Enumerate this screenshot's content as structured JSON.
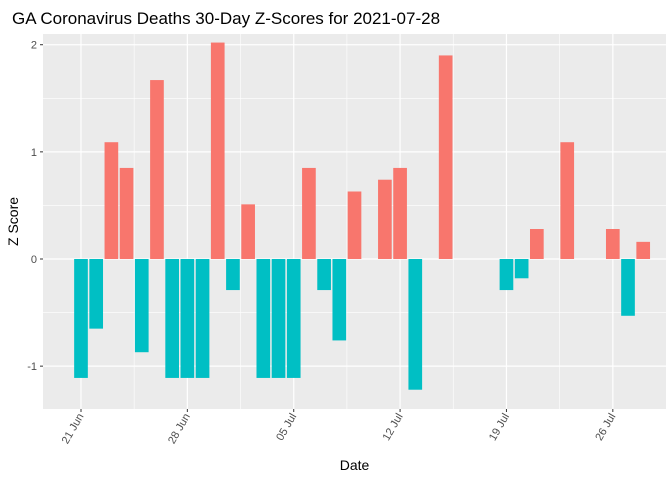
{
  "chart_data": {
    "type": "bar",
    "title": "GA Coronavirus Deaths 30-Day Z-Scores for 2021-07-28",
    "xlabel": "Date",
    "ylabel": "Z Score",
    "ylim": [
      -1.4,
      2.1
    ],
    "y_ticks": [
      -1,
      0,
      1,
      2
    ],
    "y_tick_labels": [
      "-1",
      "0",
      "1",
      "2"
    ],
    "x_ticks": [
      {
        "day": 0,
        "label": "21 Jun"
      },
      {
        "day": 7,
        "label": "28 Jun"
      },
      {
        "day": 14,
        "label": "05 Jul"
      },
      {
        "day": 21,
        "label": "12 Jul"
      },
      {
        "day": 28,
        "label": "19 Jul"
      },
      {
        "day": 35,
        "label": "26 Jul"
      }
    ],
    "x_range_days": [
      -2.5,
      38.5
    ],
    "colors": {
      "positive": "#F8766D",
      "negative": "#00BFC4"
    },
    "bars": [
      {
        "day": 0,
        "value": -1.11
      },
      {
        "day": 1,
        "value": -0.65
      },
      {
        "day": 2,
        "value": 1.09
      },
      {
        "day": 3,
        "value": 0.85
      },
      {
        "day": 4,
        "value": -0.87
      },
      {
        "day": 5,
        "value": 1.67
      },
      {
        "day": 6,
        "value": -1.11
      },
      {
        "day": 7,
        "value": -1.11
      },
      {
        "day": 8,
        "value": -1.11
      },
      {
        "day": 9,
        "value": 2.02
      },
      {
        "day": 10,
        "value": -0.29
      },
      {
        "day": 11,
        "value": 0.51
      },
      {
        "day": 12,
        "value": -1.11
      },
      {
        "day": 13,
        "value": -1.11
      },
      {
        "day": 14,
        "value": -1.11
      },
      {
        "day": 15,
        "value": 0.85
      },
      {
        "day": 16,
        "value": -0.29
      },
      {
        "day": 17,
        "value": -0.76
      },
      {
        "day": 18,
        "value": 0.63
      },
      {
        "day": 20,
        "value": 0.74
      },
      {
        "day": 21,
        "value": 0.85
      },
      {
        "day": 22,
        "value": -1.22
      },
      {
        "day": 24,
        "value": 1.9
      },
      {
        "day": 28,
        "value": -0.29
      },
      {
        "day": 29,
        "value": -0.18
      },
      {
        "day": 30,
        "value": 0.28
      },
      {
        "day": 32,
        "value": 1.09
      },
      {
        "day": 35,
        "value": 0.28
      },
      {
        "day": 36,
        "value": -0.53
      },
      {
        "day": 37,
        "value": 0.16
      }
    ]
  }
}
